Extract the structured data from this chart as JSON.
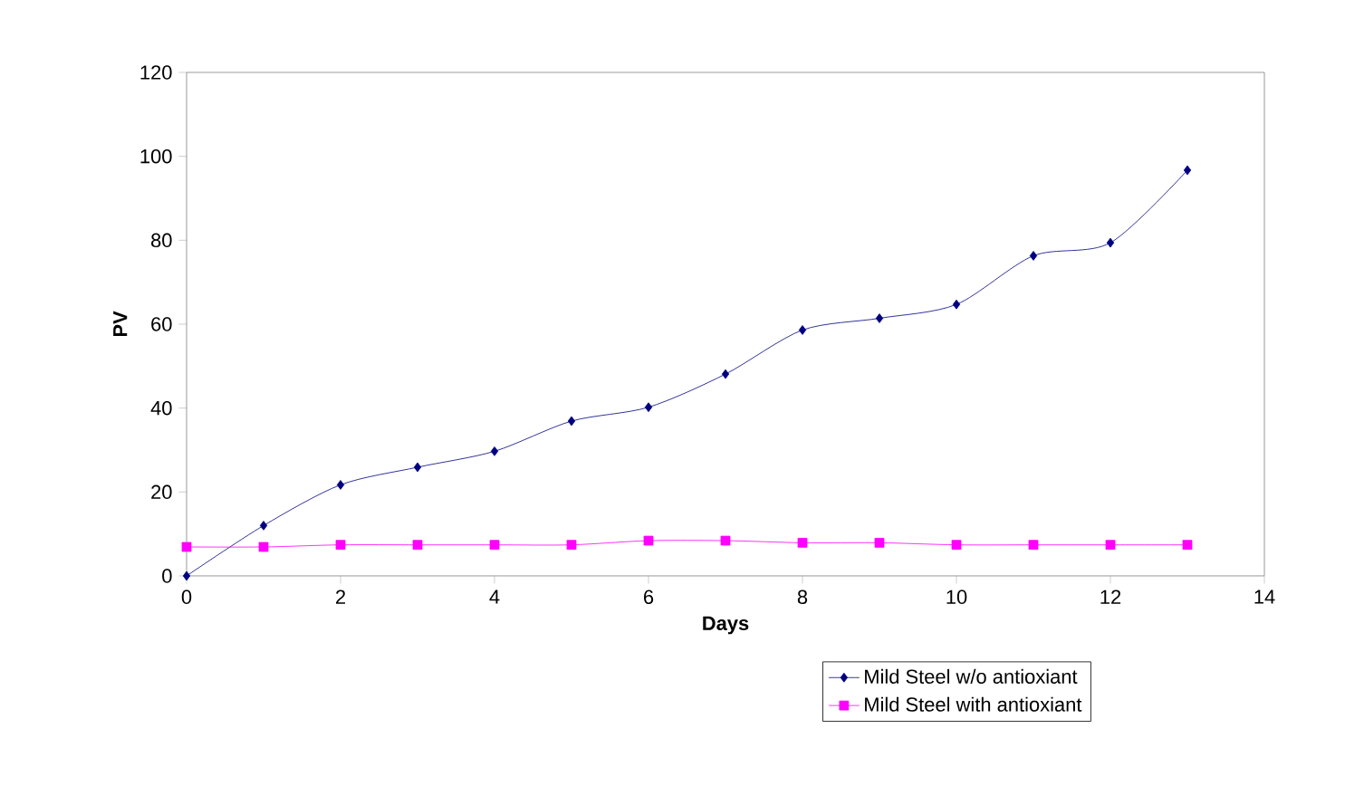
{
  "chart_data": {
    "type": "line",
    "xlabel": "Days",
    "ylabel": "PV",
    "x": [
      0,
      1,
      2,
      3,
      4,
      5,
      6,
      7,
      8,
      9,
      10,
      11,
      12,
      13
    ],
    "series": [
      {
        "name": "Mild Steel w/o antioxiant",
        "color": "#000080",
        "marker": "diamond",
        "values": [
          0,
          12.0,
          21.7,
          25.9,
          29.7,
          36.9,
          40.2,
          48.1,
          58.6,
          61.4,
          64.7,
          76.3,
          79.4,
          96.7
        ]
      },
      {
        "name": "Mild Steel with antioxiant",
        "color": "#ff00ff",
        "marker": "square",
        "values": [
          6.9,
          6.9,
          7.4,
          7.4,
          7.4,
          7.4,
          8.4,
          8.4,
          7.9,
          7.9,
          7.4,
          7.4,
          7.4,
          7.4
        ]
      }
    ],
    "xlim": [
      0,
      14
    ],
    "ylim": [
      0,
      120
    ],
    "xticks": [
      0,
      2,
      4,
      6,
      8,
      10,
      12,
      14
    ],
    "yticks": [
      0,
      20,
      40,
      60,
      80,
      100,
      120
    ],
    "grid": false,
    "legend": "bottom right",
    "line_style": "solid"
  }
}
